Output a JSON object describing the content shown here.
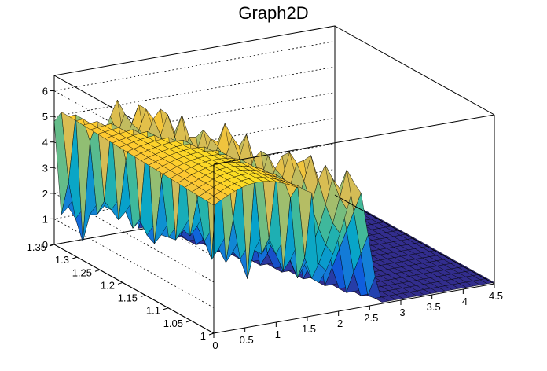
{
  "chart_data": {
    "type": "surface",
    "title": "Graph2D",
    "xlabel": "",
    "ylabel": "",
    "zlabel": "",
    "xlim": [
      0,
      4.5
    ],
    "ylim": [
      1,
      1.35
    ],
    "zlim": [
      0,
      6.6
    ],
    "x_ticks": [
      "0",
      "0.5",
      "1",
      "1.5",
      "2",
      "2.5",
      "3",
      "3.5",
      "4",
      "4.5"
    ],
    "y_ticks": [
      "1",
      "1.05",
      "1.1",
      "1.15",
      "1.2",
      "1.25",
      "1.3",
      "1.35"
    ],
    "z_ticks": [
      "0",
      "1",
      "2",
      "3",
      "4",
      "5",
      "6"
    ],
    "colormap": [
      "#352a87",
      "#0f5cdd",
      "#1481d6",
      "#06a4ca",
      "#2eb7a4",
      "#87bf77",
      "#d1bb59",
      "#fec832",
      "#f9fb0e"
    ],
    "grid": true,
    "description_of_shape": {
      "left_plateau_z": 5.0,
      "step1_x_at_y_low": 1.6,
      "step1_x_at_y_high": 0.0,
      "mid_plateau_z": 5.2,
      "step2_x_at_y_low": 2.3,
      "step2_x_at_y_high": 1.0,
      "right_floor_z": 0.0
    }
  }
}
